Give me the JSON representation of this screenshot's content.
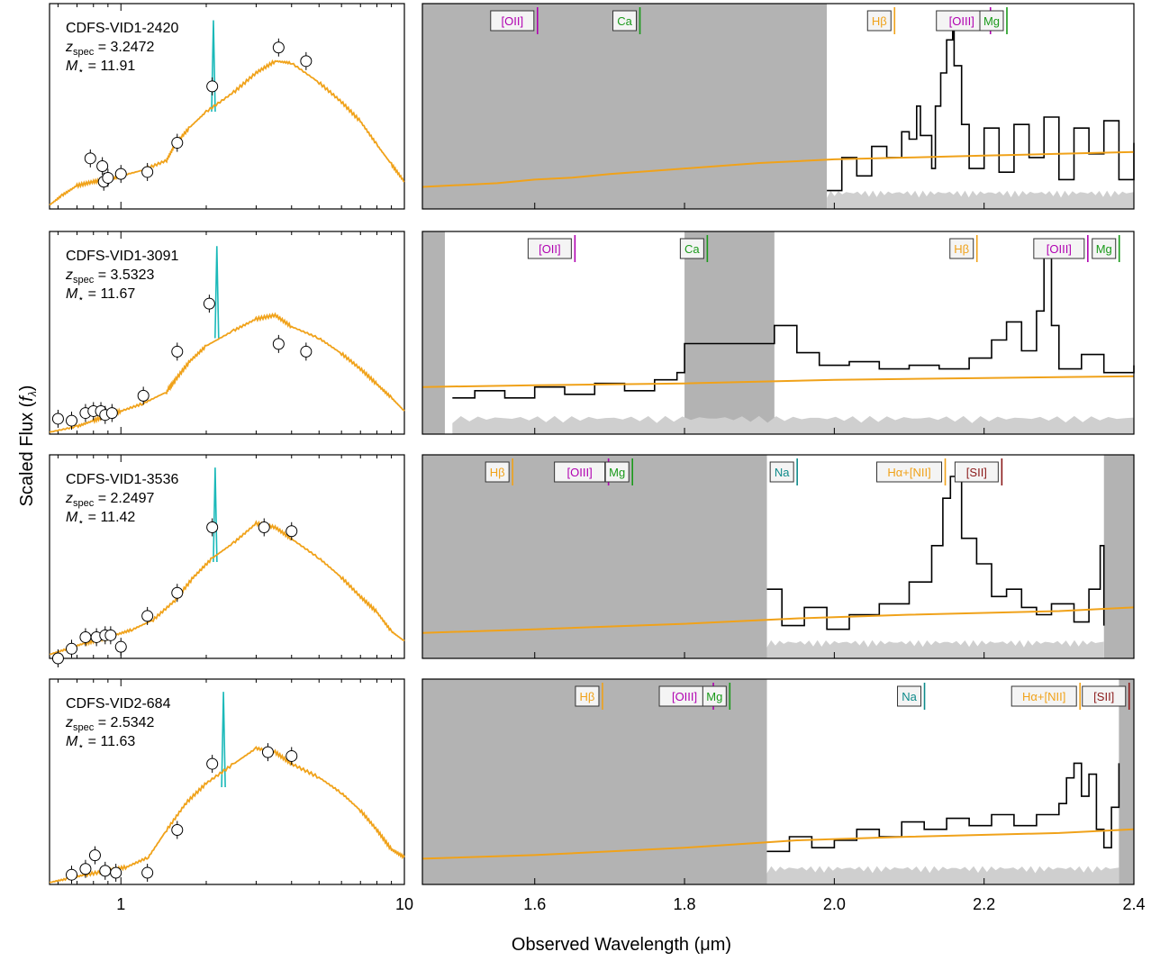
{
  "figure": {
    "ylabel": "Scaled Flux (f_λ)",
    "xlabel": "Observed Wavelength (μm)"
  },
  "colors": {
    "model": "#f0a21a",
    "emission_model": "#1bb9b9",
    "spectrum": "#000000",
    "mask": "#b3b3b3",
    "error": "#cfcfcf",
    "oiii_label": "#b000b0",
    "ca_mg_label": "#1a9a1a",
    "na_label": "#0d8a8a",
    "sii_label": "#8b1a1a",
    "photometry_fill": "#ffffff",
    "nii_marker": "#ff2020"
  },
  "chart_data": [
    {
      "type": "scatter",
      "panel": "sed",
      "object": "CDFS-VID1-2420",
      "z_label": "z",
      "z_sub": "spec",
      "z_value": "= 3.2472",
      "mass_label": "M",
      "mass_sub": "⋆",
      "mass_value": "= 11.91",
      "x_scale": "log",
      "xlim": [
        0.56,
        10
      ],
      "xticks": [],
      "photometry": [
        [
          0.78,
          0.26
        ],
        [
          0.86,
          0.22
        ],
        [
          0.87,
          0.14
        ],
        [
          0.9,
          0.16
        ],
        [
          1.0,
          0.18
        ],
        [
          1.24,
          0.19
        ],
        [
          1.58,
          0.34
        ],
        [
          2.1,
          0.63
        ],
        [
          3.6,
          0.83
        ],
        [
          4.5,
          0.76
        ]
      ],
      "sed_model": [
        [
          0.56,
          0.02
        ],
        [
          0.62,
          0.07
        ],
        [
          0.7,
          0.12
        ],
        [
          0.8,
          0.14
        ],
        [
          0.9,
          0.15
        ],
        [
          1.0,
          0.17
        ],
        [
          1.2,
          0.2
        ],
        [
          1.45,
          0.25
        ],
        [
          1.55,
          0.33
        ],
        [
          1.75,
          0.42
        ],
        [
          2.0,
          0.5
        ],
        [
          2.5,
          0.6
        ],
        [
          3.0,
          0.7
        ],
        [
          3.5,
          0.76
        ],
        [
          4.0,
          0.75
        ],
        [
          5.0,
          0.65
        ],
        [
          6.0,
          0.55
        ],
        [
          7.0,
          0.45
        ],
        [
          8.0,
          0.33
        ],
        [
          9.0,
          0.23
        ],
        [
          10.0,
          0.14
        ]
      ],
      "emission_peak": {
        "x": 2.12,
        "y": 0.97
      }
    },
    {
      "type": "line",
      "panel": "spectrum",
      "object": "CDFS-VID1-2420",
      "xlim": [
        1.45,
        2.4
      ],
      "xticks": [],
      "masked": [
        [
          1.45,
          1.99
        ]
      ],
      "spectrum": [
        [
          1.99,
          0.1
        ],
        [
          2.01,
          0.28
        ],
        [
          2.03,
          0.18
        ],
        [
          2.05,
          0.34
        ],
        [
          2.07,
          0.28
        ],
        [
          2.09,
          0.42
        ],
        [
          2.1,
          0.38
        ],
        [
          2.11,
          0.56
        ],
        [
          2.115,
          0.4
        ],
        [
          2.13,
          0.22
        ],
        [
          2.135,
          0.56
        ],
        [
          2.142,
          0.74
        ],
        [
          2.15,
          0.92
        ],
        [
          2.158,
          1.0
        ],
        [
          2.16,
          0.78
        ],
        [
          2.17,
          0.46
        ],
        [
          2.18,
          0.22
        ],
        [
          2.2,
          0.44
        ],
        [
          2.22,
          0.2
        ],
        [
          2.24,
          0.46
        ],
        [
          2.26,
          0.28
        ],
        [
          2.28,
          0.5
        ],
        [
          2.3,
          0.16
        ],
        [
          2.32,
          0.44
        ],
        [
          2.34,
          0.3
        ],
        [
          2.36,
          0.48
        ],
        [
          2.38,
          0.16
        ],
        [
          2.4,
          0.36
        ]
      ],
      "model": [
        [
          1.45,
          0.12
        ],
        [
          1.55,
          0.14
        ],
        [
          1.6,
          0.16
        ],
        [
          1.65,
          0.17
        ],
        [
          1.7,
          0.19
        ],
        [
          1.8,
          0.22
        ],
        [
          1.9,
          0.25
        ],
        [
          2.0,
          0.27
        ],
        [
          2.1,
          0.28
        ],
        [
          2.2,
          0.29
        ],
        [
          2.3,
          0.3
        ],
        [
          2.4,
          0.31
        ]
      ],
      "line_labels": [
        {
          "text": "[OII]",
          "x": 1.57,
          "kind": "oiii"
        },
        {
          "text": "Ca",
          "x": 1.72,
          "kind": "ca"
        },
        {
          "text": "Hβ",
          "x": 2.06,
          "kind": "hb"
        },
        {
          "text": "[OIII]",
          "x": 2.17,
          "kind": "oiii"
        },
        {
          "text": "Mg",
          "x": 2.21,
          "kind": "mg"
        }
      ]
    },
    {
      "type": "scatter",
      "panel": "sed",
      "object": "CDFS-VID1-3091",
      "z_label": "z",
      "z_sub": "spec",
      "z_value": "= 3.5323",
      "mass_label": "M",
      "mass_sub": "⋆",
      "mass_value": "= 11.67",
      "x_scale": "log",
      "xlim": [
        0.56,
        10
      ],
      "xticks": [],
      "photometry": [
        [
          0.6,
          0.08
        ],
        [
          0.67,
          0.07
        ],
        [
          0.75,
          0.11
        ],
        [
          0.8,
          0.12
        ],
        [
          0.85,
          0.12
        ],
        [
          0.88,
          0.1
        ],
        [
          0.93,
          0.11
        ],
        [
          1.2,
          0.2
        ],
        [
          1.58,
          0.43
        ],
        [
          2.05,
          0.68
        ],
        [
          3.6,
          0.47
        ],
        [
          4.5,
          0.43
        ]
      ],
      "sed_model": [
        [
          0.56,
          0.01
        ],
        [
          0.7,
          0.04
        ],
        [
          0.8,
          0.07
        ],
        [
          0.9,
          0.1
        ],
        [
          1.0,
          0.12
        ],
        [
          1.2,
          0.16
        ],
        [
          1.45,
          0.22
        ],
        [
          1.55,
          0.28
        ],
        [
          1.75,
          0.38
        ],
        [
          2.0,
          0.46
        ],
        [
          2.5,
          0.54
        ],
        [
          3.0,
          0.6
        ],
        [
          3.5,
          0.62
        ],
        [
          4.0,
          0.56
        ],
        [
          5.0,
          0.5
        ],
        [
          6.0,
          0.42
        ],
        [
          7.0,
          0.34
        ],
        [
          8.0,
          0.26
        ],
        [
          9.0,
          0.19
        ],
        [
          10.0,
          0.12
        ]
      ],
      "emission_peak": {
        "x": 2.18,
        "y": 0.98
      }
    },
    {
      "type": "line",
      "panel": "spectrum",
      "object": "CDFS-VID1-3091",
      "xlim": [
        1.45,
        2.4
      ],
      "xticks": [],
      "masked": [
        [
          1.45,
          1.48
        ],
        [
          1.8,
          1.92
        ]
      ],
      "spectrum": [
        [
          1.49,
          0.2
        ],
        [
          1.52,
          0.24
        ],
        [
          1.56,
          0.2
        ],
        [
          1.6,
          0.26
        ],
        [
          1.64,
          0.22
        ],
        [
          1.68,
          0.28
        ],
        [
          1.72,
          0.24
        ],
        [
          1.76,
          0.3
        ],
        [
          1.79,
          0.34
        ],
        [
          1.8,
          0.5
        ],
        [
          1.92,
          0.6
        ],
        [
          1.95,
          0.45
        ],
        [
          1.98,
          0.38
        ],
        [
          2.02,
          0.4
        ],
        [
          2.06,
          0.36
        ],
        [
          2.1,
          0.38
        ],
        [
          2.14,
          0.36
        ],
        [
          2.18,
          0.42
        ],
        [
          2.21,
          0.52
        ],
        [
          2.23,
          0.62
        ],
        [
          2.25,
          0.46
        ],
        [
          2.27,
          0.68
        ],
        [
          2.28,
          0.98
        ],
        [
          2.29,
          0.6
        ],
        [
          2.3,
          0.36
        ],
        [
          2.33,
          0.44
        ],
        [
          2.36,
          0.34
        ],
        [
          2.4,
          0.38
        ]
      ],
      "model": [
        [
          1.45,
          0.26
        ],
        [
          1.6,
          0.27
        ],
        [
          1.8,
          0.28
        ],
        [
          2.0,
          0.3
        ],
        [
          2.2,
          0.31
        ],
        [
          2.4,
          0.32
        ]
      ],
      "line_labels": [
        {
          "text": "[OII]",
          "x": 1.62,
          "kind": "oiii"
        },
        {
          "text": "Ca",
          "x": 1.81,
          "kind": "ca"
        },
        {
          "text": "Hβ",
          "x": 2.17,
          "kind": "hb"
        },
        {
          "text": "[OIII]",
          "x": 2.3,
          "kind": "oiii"
        },
        {
          "text": "Mg",
          "x": 2.36,
          "kind": "mg"
        }
      ]
    },
    {
      "type": "scatter",
      "panel": "sed",
      "object": "CDFS-VID1-3536",
      "z_label": "z",
      "z_sub": "spec",
      "z_value": "= 2.2497",
      "mass_label": "M",
      "mass_sub": "⋆",
      "mass_value": "= 11.42",
      "x_scale": "log",
      "xlim": [
        0.56,
        10
      ],
      "xticks": [],
      "photometry": [
        [
          0.6,
          0.0
        ],
        [
          0.67,
          0.05
        ],
        [
          0.75,
          0.11
        ],
        [
          0.82,
          0.11
        ],
        [
          0.88,
          0.12
        ],
        [
          0.92,
          0.12
        ],
        [
          1.0,
          0.06
        ],
        [
          1.24,
          0.22
        ],
        [
          1.58,
          0.34
        ],
        [
          2.1,
          0.68
        ],
        [
          3.2,
          0.68
        ],
        [
          4.0,
          0.66
        ]
      ],
      "sed_model": [
        [
          0.56,
          0.02
        ],
        [
          0.65,
          0.05
        ],
        [
          0.75,
          0.08
        ],
        [
          0.85,
          0.1
        ],
        [
          0.95,
          0.12
        ],
        [
          1.1,
          0.15
        ],
        [
          1.3,
          0.2
        ],
        [
          1.55,
          0.3
        ],
        [
          1.8,
          0.42
        ],
        [
          2.1,
          0.52
        ],
        [
          2.5,
          0.6
        ],
        [
          3.0,
          0.7
        ],
        [
          3.5,
          0.68
        ],
        [
          4.0,
          0.62
        ],
        [
          5.0,
          0.52
        ],
        [
          6.0,
          0.42
        ],
        [
          7.0,
          0.32
        ],
        [
          8.0,
          0.24
        ],
        [
          9.0,
          0.14
        ],
        [
          10.0,
          0.09
        ]
      ],
      "emission_peak": {
        "x": 2.15,
        "y": 0.99
      }
    },
    {
      "type": "line",
      "panel": "spectrum",
      "object": "CDFS-VID1-3536",
      "xlim": [
        1.45,
        2.4
      ],
      "xticks": [],
      "masked": [
        [
          1.45,
          1.91
        ],
        [
          2.36,
          2.4
        ]
      ],
      "spectrum": [
        [
          1.91,
          0.38
        ],
        [
          1.93,
          0.18
        ],
        [
          1.96,
          0.28
        ],
        [
          1.99,
          0.16
        ],
        [
          2.02,
          0.24
        ],
        [
          2.06,
          0.3
        ],
        [
          2.1,
          0.42
        ],
        [
          2.13,
          0.62
        ],
        [
          2.145,
          0.88
        ],
        [
          2.155,
          1.0
        ],
        [
          2.17,
          0.66
        ],
        [
          2.19,
          0.52
        ],
        [
          2.21,
          0.34
        ],
        [
          2.23,
          0.38
        ],
        [
          2.25,
          0.28
        ],
        [
          2.27,
          0.24
        ],
        [
          2.29,
          0.3
        ],
        [
          2.32,
          0.2
        ],
        [
          2.34,
          0.38
        ],
        [
          2.355,
          0.62
        ],
        [
          2.36,
          0.18
        ]
      ],
      "model": [
        [
          1.45,
          0.14
        ],
        [
          1.6,
          0.16
        ],
        [
          1.8,
          0.19
        ],
        [
          1.95,
          0.22
        ],
        [
          2.1,
          0.24
        ],
        [
          2.3,
          0.26
        ],
        [
          2.4,
          0.28
        ]
      ],
      "line_labels": [
        {
          "text": "Hβ",
          "x": 1.55,
          "kind": "hb"
        },
        {
          "text": "[OIII]",
          "x": 1.66,
          "kind": "oiii"
        },
        {
          "text": "Mg",
          "x": 1.71,
          "kind": "mg"
        },
        {
          "text": "Na",
          "x": 1.93,
          "kind": "na"
        },
        {
          "text": "Hα+[NII]",
          "x": 2.1,
          "kind": "ha"
        },
        {
          "text": "[SII]",
          "x": 2.19,
          "kind": "sii"
        }
      ]
    },
    {
      "type": "scatter",
      "panel": "sed",
      "object": "CDFS-VID2-684",
      "z_label": "z",
      "z_sub": "spec",
      "z_value": "= 2.5342",
      "mass_label": "M",
      "mass_sub": "⋆",
      "mass_value": "= 11.63",
      "x_scale": "log",
      "xlim": [
        0.56,
        10
      ],
      "xticks": [
        {
          "label": "1",
          "x": 1.0
        },
        {
          "label": "10",
          "x": 10.0
        }
      ],
      "photometry": [
        [
          0.67,
          0.05
        ],
        [
          0.75,
          0.08
        ],
        [
          0.81,
          0.15
        ],
        [
          0.88,
          0.07
        ],
        [
          0.96,
          0.06
        ],
        [
          1.24,
          0.06
        ],
        [
          1.58,
          0.28
        ],
        [
          2.1,
          0.62
        ],
        [
          3.3,
          0.68
        ],
        [
          4.0,
          0.66
        ]
      ],
      "sed_model": [
        [
          0.56,
          0.01
        ],
        [
          0.65,
          0.03
        ],
        [
          0.75,
          0.05
        ],
        [
          0.9,
          0.07
        ],
        [
          1.05,
          0.09
        ],
        [
          1.25,
          0.14
        ],
        [
          1.45,
          0.28
        ],
        [
          1.7,
          0.42
        ],
        [
          2.0,
          0.52
        ],
        [
          2.5,
          0.62
        ],
        [
          3.0,
          0.7
        ],
        [
          3.5,
          0.68
        ],
        [
          4.0,
          0.62
        ],
        [
          5.0,
          0.55
        ],
        [
          6.0,
          0.47
        ],
        [
          7.0,
          0.38
        ],
        [
          8.0,
          0.28
        ],
        [
          9.0,
          0.18
        ],
        [
          10.0,
          0.14
        ]
      ],
      "emission_peak": {
        "x": 2.3,
        "y": 0.99
      }
    },
    {
      "type": "line",
      "panel": "spectrum",
      "object": "CDFS-VID2-684",
      "xlim": [
        1.45,
        2.4
      ],
      "xticks": [
        {
          "label": "1.6",
          "x": 1.6
        },
        {
          "label": "1.8",
          "x": 1.8
        },
        {
          "label": "2.0",
          "x": 2.0
        },
        {
          "label": "2.2",
          "x": 2.2
        },
        {
          "label": "2.4",
          "x": 2.4
        }
      ],
      "masked": [
        [
          1.45,
          1.91
        ],
        [
          2.38,
          2.4
        ]
      ],
      "spectrum": [
        [
          1.91,
          0.18
        ],
        [
          1.94,
          0.26
        ],
        [
          1.97,
          0.2
        ],
        [
          2.0,
          0.24
        ],
        [
          2.03,
          0.3
        ],
        [
          2.06,
          0.26
        ],
        [
          2.09,
          0.34
        ],
        [
          2.12,
          0.3
        ],
        [
          2.15,
          0.36
        ],
        [
          2.18,
          0.32
        ],
        [
          2.21,
          0.38
        ],
        [
          2.24,
          0.32
        ],
        [
          2.27,
          0.38
        ],
        [
          2.3,
          0.44
        ],
        [
          2.31,
          0.58
        ],
        [
          2.32,
          0.66
        ],
        [
          2.33,
          0.48
        ],
        [
          2.34,
          0.6
        ],
        [
          2.35,
          0.3
        ],
        [
          2.36,
          0.2
        ],
        [
          2.37,
          0.42
        ],
        [
          2.38,
          0.66
        ]
      ],
      "model": [
        [
          1.45,
          0.14
        ],
        [
          1.6,
          0.16
        ],
        [
          1.8,
          0.2
        ],
        [
          1.95,
          0.24
        ],
        [
          2.1,
          0.26
        ],
        [
          2.3,
          0.28
        ],
        [
          2.4,
          0.3
        ]
      ],
      "line_labels": [
        {
          "text": "Hβ",
          "x": 1.67,
          "kind": "hb"
        },
        {
          "text": "[OIII]",
          "x": 1.8,
          "kind": "oiii"
        },
        {
          "text": "Mg",
          "x": 1.84,
          "kind": "mg"
        },
        {
          "text": "Na",
          "x": 2.1,
          "kind": "na"
        },
        {
          "text": "Hα+[NII]",
          "x": 2.28,
          "kind": "ha"
        },
        {
          "text": "[SII]",
          "x": 2.36,
          "kind": "sii"
        }
      ]
    }
  ]
}
